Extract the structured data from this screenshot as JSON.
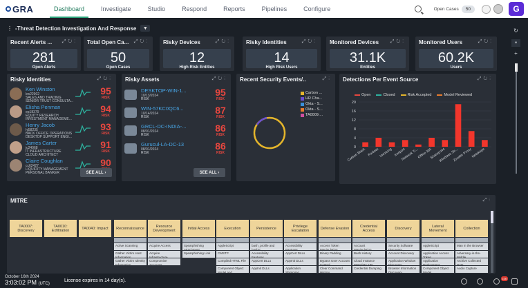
{
  "brand": {
    "name": "GRA"
  },
  "nav": [
    "Dashboard",
    "Investigate",
    "Studio",
    "Respond",
    "Reports",
    "Pipelines",
    "Configure"
  ],
  "topbar": {
    "open_cases_label": "Open Cases",
    "open_cases_value": "50",
    "app_icon": "G"
  },
  "dashboard": {
    "title": "-Threat Detection Investigation And Response"
  },
  "kpis": [
    {
      "title": "Recent Alerts ...",
      "value": "281",
      "label": "Open Alerts"
    },
    {
      "title": "Total Open Ca...",
      "value": "50",
      "label": "Open Cases"
    },
    {
      "title": "Risky Devices",
      "value": "12",
      "label": "High Risk Entities"
    },
    {
      "title": "Risky Identities",
      "value": "14",
      "label": "High Risk Users"
    },
    {
      "title": "Monitored Devices",
      "value": "31.1K",
      "label": "Entities"
    },
    {
      "title": "Monitored Users",
      "value": "60.2K",
      "label": "Users"
    }
  ],
  "risky_identities": {
    "title": "Risky Identities",
    "see_all": "SEE ALL",
    "rows": [
      {
        "name": "Ken Winston",
        "id": "kw22902",
        "l1": "SALES AND TRADING",
        "l2": "SENIOR TRUST CONSULTA...",
        "score": "95",
        "risk": "RISK"
      },
      {
        "name": "Elisha Penman",
        "id": "ep18379",
        "l1": "EQUITY RESEARCH",
        "l2": "INVESTMENT MANAGEME...",
        "score": "94",
        "risk": "RISK"
      },
      {
        "name": "Henry Jacob",
        "id": "hj58235",
        "l1": "BACK OFFICE OPERATIONS",
        "l2": "DESKTOP SUPPORT ENGI...",
        "score": "93",
        "risk": "RISK"
      },
      {
        "name": "James Carter",
        "id": "jc24068",
        "l1": "IT INFRASTRUCTURE",
        "l2": "CLOUD ARCHITECT",
        "score": "91",
        "risk": "RISK"
      },
      {
        "name": "Claire Coughlan",
        "id": "cc62427",
        "l1": "LIQUIDITY MANAGEMENT",
        "l2": "PERSONAL BANKER",
        "score": "90",
        "risk": "RISK"
      }
    ]
  },
  "risky_assets": {
    "title": "Risky Assets",
    "see_all": "SEE ALL",
    "rows": [
      {
        "name": "DESKTOP-WIN-1...",
        "date": "10/13/2024",
        "l2": "RISK",
        "score": "95",
        "risk": "RISK"
      },
      {
        "name": "WIN-57KC0QC6...",
        "date": "10/14/2024",
        "l2": "RISK",
        "score": "87",
        "risk": "RISK"
      },
      {
        "name": "GRCL-DC-INDIA-...",
        "date": "08/01/2024",
        "l2": "RISK",
        "score": "86",
        "risk": "RISK"
      },
      {
        "name": "Gurucul-LA-DC-13",
        "date": "08/01/2024",
        "l2": "RISK",
        "score": "86",
        "risk": "RISK"
      }
    ]
  },
  "security_events": {
    "title": "Recent Security Events/...",
    "legend": [
      "Carbon ...",
      "HR Cha...",
      "Okta - S...",
      "Okta - S...",
      "TA0009:..."
    ]
  },
  "chart_data": {
    "type": "bar",
    "title": "Detections Per Event Source",
    "legend": [
      "Open",
      "Closed",
      "Risk Accepted",
      "Model Reviewed"
    ],
    "categories": [
      "Carbon Black",
      "Fortinet",
      "Invoicing",
      "Ironport",
      "Network Tr...",
      "Office 365",
      "Sharepoint",
      "Windows Se...",
      "Zscaler Proxy",
      "Netskope"
    ],
    "values": [
      2,
      4,
      2,
      3,
      1,
      4,
      3,
      19,
      7,
      3
    ],
    "ylim": [
      0,
      20
    ],
    "yticks": [
      0,
      4,
      8,
      12,
      16,
      20
    ]
  },
  "mitre": {
    "title": "MITRE",
    "headers": [
      "TA0007: Discovery",
      "TA0010: Exfiltration",
      "TA0040: Impact",
      "Reconnaissance",
      "Resource Development",
      "Initial Access",
      "Execution",
      "Persistence",
      "Privilege Escalation",
      "Defense Evasion",
      "Credential Access",
      "Discovery",
      "Lateral Movement",
      "Collection"
    ],
    "cells": [
      [
        "Active Scanning",
        "Gather Victim Host Information",
        "Gather Victim Identity Information"
      ],
      [
        "Acquire Access",
        "Acquire Infrastructure",
        "Compromise Accounts"
      ],
      [
        "Spearphishing Attachment",
        "Spearphishing Link"
      ],
      [
        "AppleScript",
        "CMSTP",
        "Compiled HTML File",
        "Component Object Model and Distributed COM"
      ],
      [
        "bash_profile and bashrc",
        "Accessibility Features",
        "AppCert DLLs",
        "AppInit DLLs"
      ],
      [
        "Accessibility Features",
        "AppCert DLLs",
        "AppInit DLLs",
        "Application Shimming"
      ],
      [
        "Access Token Manipulation",
        "Binary Padding",
        "Bypass User Account Control",
        "Clear Command History"
      ],
      [
        "Account Manipulation",
        "Bash History",
        "Cloud Instance Metadata API",
        "Credential Dumping"
      ],
      [
        "Security Software Discovery",
        "Account Discovery",
        "Application Window Discovery",
        "Browser Information Discovery"
      ],
      [
        "AppleScript",
        "Application Access Token",
        "Application Deployment Software",
        "Component Object Model"
      ],
      [
        "Man in the Browser",
        "Adversary-in-the-Middle",
        "Archive Collected Data",
        "Audio Capture"
      ]
    ]
  },
  "status": {
    "date": "October 16th 2024",
    "time": "3:03:02 PM",
    "tz": "(UTC)",
    "license": "License expires in 14 day(s).",
    "badge": "10K"
  }
}
